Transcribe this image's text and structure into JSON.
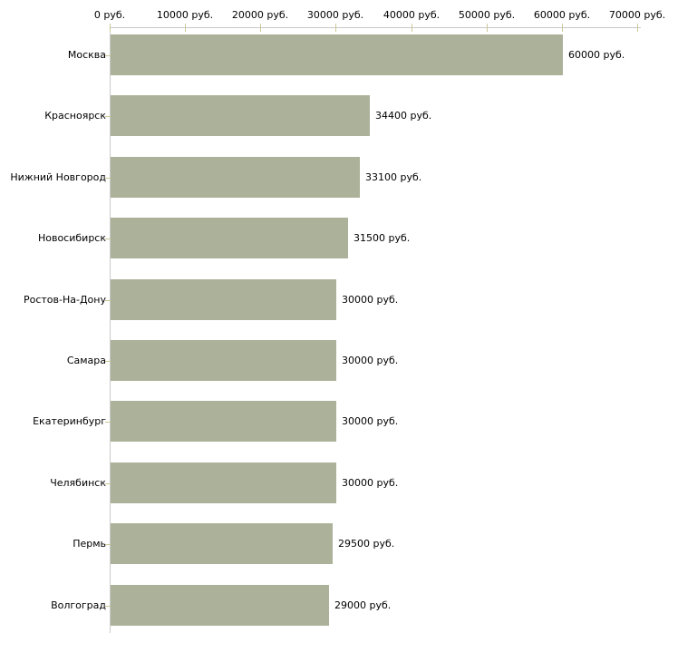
{
  "chart_data": {
    "type": "bar",
    "orientation": "horizontal",
    "title": "",
    "unit": "руб.",
    "categories": [
      "Москва",
      "Красноярск",
      "Нижний Новгород",
      "Новосибирск",
      "Ростов-На-Дону",
      "Самара",
      "Екатеринбург",
      "Челябинск",
      "Пермь",
      "Волгоград"
    ],
    "values": [
      60000,
      34400,
      33100,
      31500,
      30000,
      30000,
      30000,
      30000,
      29500,
      29000
    ],
    "value_labels": [
      "60000 руб.",
      "34400 руб.",
      "33100 руб.",
      "31500 руб.",
      "30000 руб.",
      "30000 руб.",
      "30000 руб.",
      "30000 руб.",
      "29500 руб.",
      "29000 руб."
    ],
    "x_ticks": [
      {
        "value": 0,
        "label": "0 руб."
      },
      {
        "value": 10000,
        "label": "10000 руб."
      },
      {
        "value": 20000,
        "label": "20000 руб."
      },
      {
        "value": 30000,
        "label": "30000 руб."
      },
      {
        "value": 40000,
        "label": "40000 руб."
      },
      {
        "value": 50000,
        "label": "50000 руб."
      },
      {
        "value": 60000,
        "label": "60000 руб."
      },
      {
        "value": 70000,
        "label": "70000 руб."
      }
    ],
    "xlim": [
      0,
      70000
    ],
    "grid": false,
    "legend": null,
    "colors": {
      "bar_fill": "#acb299",
      "tick_mark": "#cbc999",
      "axis_line": "#c9c9c9",
      "text": "#000000",
      "background": "#ffffff"
    }
  }
}
